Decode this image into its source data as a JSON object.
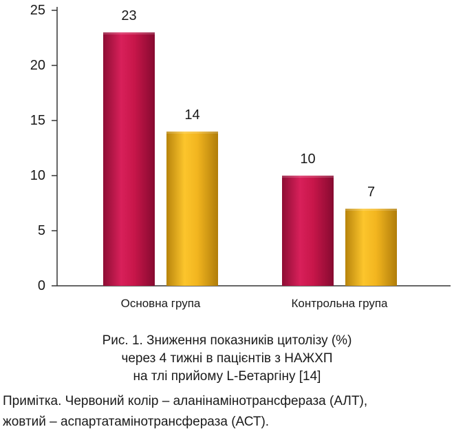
{
  "chart_data": {
    "type": "bar",
    "categories": [
      "Основна група",
      "Контрольна група"
    ],
    "series": [
      {
        "values": [
          23,
          10
        ],
        "color": "#c8164a"
      },
      {
        "values": [
          14,
          7
        ],
        "color": "#f2b51f"
      }
    ],
    "data_labels": [
      [
        "23",
        "10"
      ],
      [
        "14",
        "7"
      ]
    ],
    "yticks": [
      0,
      5,
      10,
      15,
      20,
      25
    ],
    "ylim": [
      0,
      25
    ],
    "xlabel": "",
    "ylabel": "",
    "grid": false,
    "legend": "none"
  },
  "caption": {
    "line1": "Рис. 1. Зниження показників цитолізу (%)",
    "line2": "через 4 тижні в пацієнтів з НАЖХП",
    "line3": "на тлі прийому L-Бетаргіну [14]"
  },
  "note": {
    "line1": "Примітка. Червоний колір – аланінамінотрансфераза (АЛТ),",
    "line2": "жовтий – аспартатамінотрансфераза (АСТ)."
  }
}
